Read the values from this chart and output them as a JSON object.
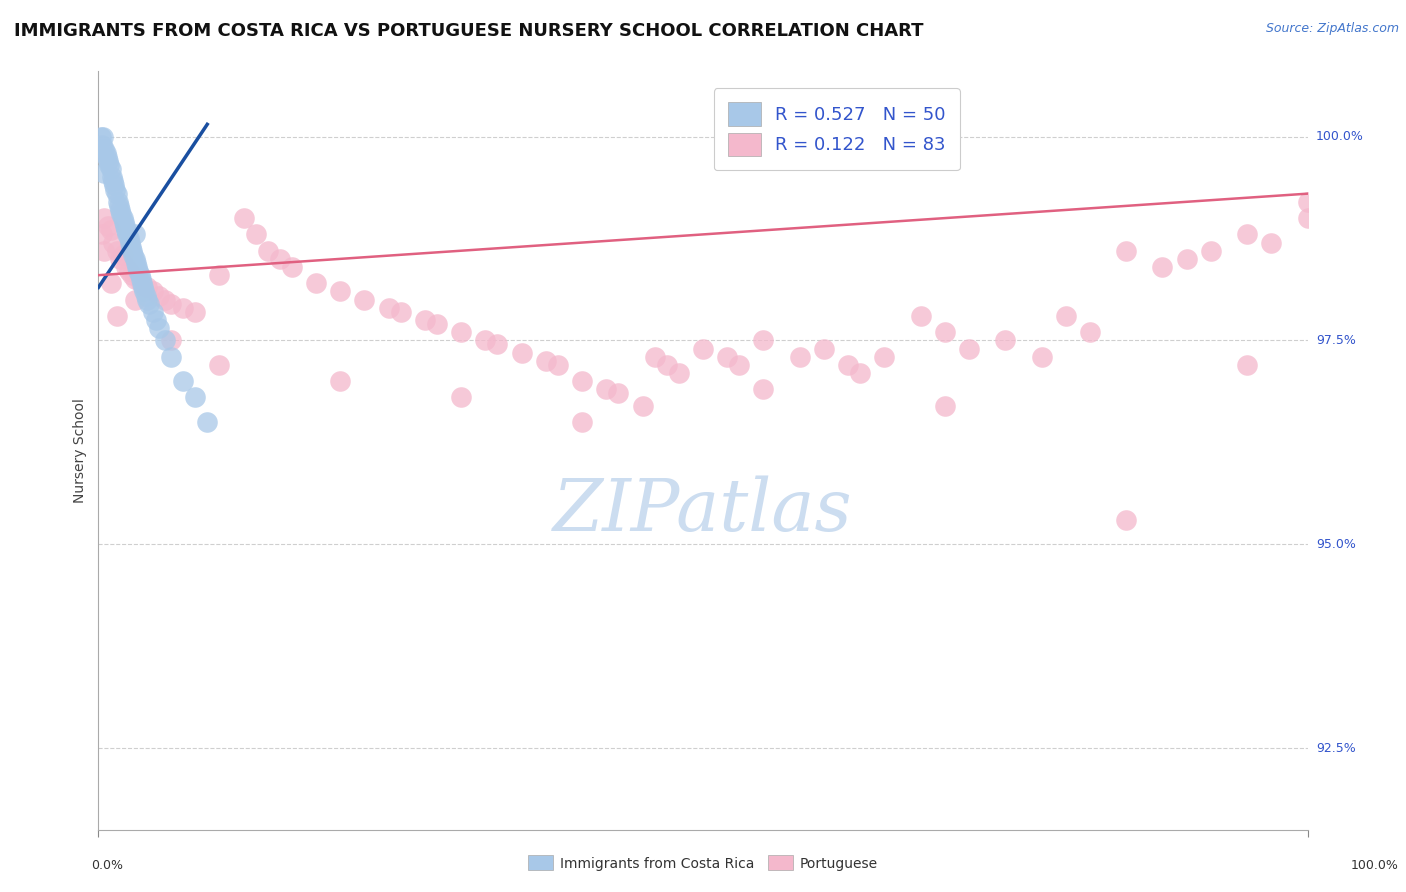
{
  "title": "IMMIGRANTS FROM COSTA RICA VS PORTUGUESE NURSERY SCHOOL CORRELATION CHART",
  "source": "Source: ZipAtlas.com",
  "ylabel": "Nursery School",
  "legend_blue_r": "R = 0.527",
  "legend_blue_n": "N = 50",
  "legend_pink_r": "R = 0.122",
  "legend_pink_n": "N = 83",
  "blue_color": "#a8c8e8",
  "pink_color": "#f4b8cc",
  "blue_line_color": "#1a4fa0",
  "pink_line_color": "#e06080",
  "legend_text_color": "#3355cc",
  "watermark_text": "ZIPatlas",
  "xlim": [
    0.0,
    100.0
  ],
  "ylim": [
    91.5,
    100.8
  ],
  "yticks": [
    92.5,
    95.0,
    97.5,
    100.0
  ],
  "blue_scatter_x": [
    0.2,
    0.3,
    0.4,
    0.5,
    0.6,
    0.7,
    0.8,
    0.9,
    1.0,
    1.1,
    1.2,
    1.3,
    1.4,
    1.5,
    1.6,
    1.7,
    1.8,
    1.9,
    2.0,
    2.1,
    2.2,
    2.3,
    2.4,
    2.5,
    2.6,
    2.7,
    2.8,
    2.9,
    3.0,
    3.1,
    3.2,
    3.3,
    3.4,
    3.5,
    3.6,
    3.7,
    3.8,
    3.9,
    4.0,
    4.2,
    4.5,
    4.8,
    5.0,
    5.5,
    6.0,
    7.0,
    8.0,
    9.0,
    0.5,
    3.0
  ],
  "blue_scatter_y": [
    100.0,
    99.9,
    100.0,
    99.85,
    99.8,
    99.75,
    99.7,
    99.65,
    99.6,
    99.5,
    99.45,
    99.4,
    99.35,
    99.3,
    99.2,
    99.15,
    99.1,
    99.05,
    99.0,
    98.95,
    98.9,
    98.85,
    98.8,
    98.75,
    98.7,
    98.65,
    98.6,
    98.55,
    98.5,
    98.45,
    98.4,
    98.35,
    98.3,
    98.25,
    98.2,
    98.15,
    98.1,
    98.05,
    98.0,
    97.95,
    97.85,
    97.75,
    97.65,
    97.5,
    97.3,
    97.0,
    96.8,
    96.5,
    99.55,
    98.8
  ],
  "pink_scatter_x": [
    0.3,
    0.5,
    0.8,
    1.0,
    1.2,
    1.5,
    1.8,
    2.0,
    2.3,
    2.5,
    2.8,
    3.0,
    3.5,
    4.0,
    4.5,
    5.0,
    5.5,
    6.0,
    7.0,
    8.0,
    10.0,
    12.0,
    13.0,
    14.0,
    15.0,
    16.0,
    18.0,
    20.0,
    22.0,
    24.0,
    25.0,
    27.0,
    28.0,
    30.0,
    32.0,
    33.0,
    35.0,
    37.0,
    38.0,
    40.0,
    42.0,
    43.0,
    45.0,
    46.0,
    47.0,
    48.0,
    50.0,
    52.0,
    53.0,
    55.0,
    58.0,
    60.0,
    62.0,
    63.0,
    65.0,
    68.0,
    70.0,
    72.0,
    75.0,
    78.0,
    80.0,
    82.0,
    85.0,
    88.0,
    90.0,
    92.0,
    95.0,
    97.0,
    100.0,
    0.5,
    1.0,
    1.5,
    3.0,
    6.0,
    10.0,
    20.0,
    30.0,
    40.0,
    55.0,
    70.0,
    85.0,
    95.0,
    100.0
  ],
  "pink_scatter_y": [
    98.8,
    99.0,
    98.9,
    98.85,
    98.7,
    98.6,
    98.5,
    98.55,
    98.4,
    98.35,
    98.3,
    98.25,
    98.2,
    98.15,
    98.1,
    98.05,
    98.0,
    97.95,
    97.9,
    97.85,
    98.3,
    99.0,
    98.8,
    98.6,
    98.5,
    98.4,
    98.2,
    98.1,
    98.0,
    97.9,
    97.85,
    97.75,
    97.7,
    97.6,
    97.5,
    97.45,
    97.35,
    97.25,
    97.2,
    97.0,
    96.9,
    96.85,
    96.7,
    97.3,
    97.2,
    97.1,
    97.4,
    97.3,
    97.2,
    97.5,
    97.3,
    97.4,
    97.2,
    97.1,
    97.3,
    97.8,
    97.6,
    97.4,
    97.5,
    97.3,
    97.8,
    97.6,
    98.6,
    98.4,
    98.5,
    98.6,
    98.8,
    98.7,
    99.0,
    98.6,
    98.2,
    97.8,
    98.0,
    97.5,
    97.2,
    97.0,
    96.8,
    96.5,
    96.9,
    96.7,
    95.3,
    97.2,
    99.2
  ],
  "blue_line_x": [
    0.0,
    9.0
  ],
  "blue_line_y": [
    98.15,
    100.15
  ],
  "pink_line_x": [
    0.0,
    100.0
  ],
  "pink_line_y": [
    98.3,
    99.3
  ],
  "title_fontsize": 13,
  "source_fontsize": 9,
  "axis_label_fontsize": 10,
  "tick_fontsize": 9,
  "legend_fontsize": 13,
  "watermark_fontsize": 52,
  "watermark_color": "#ccddf0",
  "background_color": "#ffffff",
  "grid_color": "#bbbbbb",
  "grid_alpha": 0.7
}
